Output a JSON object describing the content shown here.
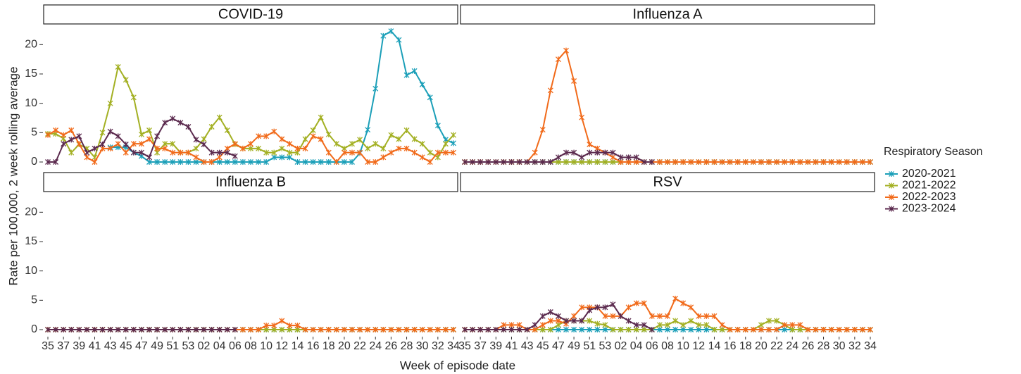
{
  "chart_data": {
    "type": "line",
    "xlabel": "Week of episode date",
    "ylabel": "Rate per 100,000, 2 week rolling average",
    "legend_title": "Respiratory Season",
    "categories": [
      "35",
      null,
      "37",
      null,
      "39",
      null,
      "41",
      null,
      "43",
      null,
      "45",
      null,
      "47",
      null,
      "49",
      null,
      "51",
      null,
      "53",
      null,
      "02",
      null,
      "04",
      null,
      "06",
      null,
      "08",
      null,
      "10",
      null,
      "12",
      null,
      "14",
      null,
      "16",
      null,
      "18",
      null,
      "20",
      null,
      "22",
      null,
      "24",
      null,
      "26",
      null,
      "28",
      null,
      "30",
      null,
      "32",
      null,
      "34"
    ],
    "ylim": [
      -1.2,
      23.4
    ],
    "yticks": [
      0,
      5,
      10,
      15,
      20
    ],
    "seasons": [
      {
        "name": "2020-2021",
        "color": "#1b9fb8"
      },
      {
        "name": "2021-2022",
        "color": "#a3b023"
      },
      {
        "name": "2022-2023",
        "color": "#f16a1a"
      },
      {
        "name": "2023-2024",
        "color": "#5b2a4e"
      }
    ],
    "facets": [
      {
        "title": "COVID-19",
        "series": [
          {
            "values": [
              null,
              null,
              null,
              null,
              null,
              null,
              null,
              null,
              2.5,
              2.5,
              2.5,
              1.6,
              1,
              0,
              0,
              0,
              0,
              0,
              0,
              0,
              0,
              0,
              0,
              0,
              0,
              0,
              0,
              0,
              0,
              0.8,
              0.8,
              0.8,
              0,
              0,
              0,
              0,
              0,
              0,
              0,
              0,
              1.5,
              5.5,
              12.5,
              21.5,
              22.3,
              20.8,
              14.8,
              15.5,
              13.2,
              11,
              6.2,
              3.8,
              3.2
            ]
          },
          {
            "values": [
              4.8,
              4.8,
              4,
              1.6,
              3,
              2.3,
              0.8,
              5,
              10,
              16.2,
              14,
              11,
              4.7,
              5.4,
              1.6,
              3.1,
              3.1,
              1.6,
              1.6,
              2.3,
              3.9,
              6,
              7.6,
              5.4,
              3,
              2.3,
              2.3,
              2.3,
              1.6,
              1.6,
              2.3,
              1.6,
              1.6,
              3.9,
              5.4,
              7.6,
              4.7,
              3.1,
              2.3,
              3.1,
              3.8,
              2.3,
              3.1,
              2.3,
              4.6,
              3.9,
              5.4,
              3.9,
              3.1,
              1.6,
              0.8,
              3.1,
              4.6
            ]
          },
          {
            "values": [
              4.6,
              5.4,
              4.6,
              5.4,
              3.1,
              0.8,
              0,
              2.3,
              2.3,
              3.1,
              1.6,
              3.1,
              3.1,
              3.9,
              2.3,
              2.3,
              1.6,
              1.6,
              1.6,
              0.8,
              0,
              0,
              0.8,
              2.3,
              3.1,
              2.3,
              3.1,
              4.4,
              4.4,
              5.2,
              3.9,
              3.1,
              2.3,
              2.3,
              4.4,
              3.9,
              1.6,
              0,
              1.6,
              1.6,
              1.6,
              0,
              0,
              0.8,
              1.6,
              2.3,
              2.3,
              1.6,
              0.8,
              0,
              1.6,
              1.6,
              1.6
            ]
          },
          {
            "values": [
              0,
              0,
              3.1,
              3.8,
              4.4,
              1.6,
              2.3,
              3,
              5.2,
              4.4,
              3,
              1.6,
              1.6,
              0.8,
              4.4,
              6.7,
              7.4,
              6.7,
              6,
              3.8,
              3,
              1.6,
              1.6,
              1.6,
              1,
              null,
              null,
              null,
              null,
              null,
              null,
              null,
              null,
              null,
              null,
              null,
              null,
              null,
              null,
              null,
              null,
              null,
              null,
              null,
              null,
              null,
              null,
              null,
              null,
              null,
              null,
              null,
              null
            ]
          }
        ]
      },
      {
        "title": "Influenza A",
        "series": [
          {
            "values": [
              null,
              null,
              null,
              null,
              null,
              null,
              null,
              null,
              0,
              0,
              0,
              0,
              0,
              0,
              0,
              0,
              0,
              0,
              0,
              0,
              0,
              0,
              0,
              0,
              0,
              0,
              0,
              0,
              0,
              0,
              0,
              0,
              0,
              0,
              0,
              0,
              0,
              0,
              0,
              0,
              0,
              0,
              0,
              0,
              0,
              0,
              0,
              0,
              0,
              0,
              0,
              0,
              0
            ]
          },
          {
            "values": [
              0,
              0,
              0,
              0,
              0,
              0,
              0,
              0,
              0,
              0,
              0,
              0,
              0,
              0,
              0,
              0,
              0,
              0,
              0,
              0,
              0,
              0,
              0,
              0,
              0,
              0,
              0,
              0,
              0,
              0,
              0,
              0,
              0,
              0,
              0,
              0,
              0,
              0,
              0,
              0,
              0,
              0,
              0,
              0,
              0,
              0,
              0,
              0,
              0,
              0,
              0,
              0,
              0
            ]
          },
          {
            "values": [
              0,
              0,
              0,
              0,
              0,
              0,
              0,
              0,
              0,
              1.6,
              5.5,
              12.2,
              17.5,
              19,
              13.8,
              7.6,
              3,
              2.3,
              1.6,
              0.8,
              0,
              0,
              0,
              0,
              0,
              0,
              0,
              0,
              0,
              0,
              0,
              0,
              0,
              0,
              0,
              0,
              0,
              0,
              0,
              0,
              0,
              0,
              0,
              0,
              0,
              0,
              0,
              0,
              0,
              0,
              0,
              0,
              0
            ]
          },
          {
            "values": [
              0,
              0,
              0,
              0,
              0,
              0,
              0,
              0,
              0,
              0,
              0,
              0,
              0.8,
              1.6,
              1.6,
              0.8,
              1.6,
              1.6,
              1.6,
              1.6,
              0.8,
              0.8,
              0.8,
              0,
              0,
              null,
              null,
              null,
              null,
              null,
              null,
              null,
              null,
              null,
              null,
              null,
              null,
              null,
              null,
              null,
              null,
              null,
              null,
              null,
              null,
              null,
              null,
              null,
              null,
              null,
              null,
              null,
              null
            ]
          }
        ]
      },
      {
        "title": "Influenza B",
        "series": [
          {
            "values": [
              null,
              null,
              null,
              null,
              null,
              null,
              null,
              null,
              0,
              0,
              0,
              0,
              0,
              0,
              0,
              0,
              0,
              0,
              0,
              0,
              0,
              0,
              0,
              0,
              0,
              0,
              0,
              0,
              0,
              0,
              0,
              0,
              0,
              0,
              0,
              0,
              0,
              0,
              0,
              0,
              0,
              0,
              0,
              0,
              0,
              0,
              0,
              0,
              0,
              0,
              0,
              0,
              0
            ]
          },
          {
            "values": [
              0,
              0,
              0,
              0,
              0,
              0,
              0,
              0,
              0,
              0,
              0,
              0,
              0,
              0,
              0,
              0,
              0,
              0,
              0,
              0,
              0,
              0,
              0,
              0,
              0,
              0,
              0,
              0,
              0,
              0,
              0,
              0,
              0,
              0,
              0,
              0,
              0,
              0,
              0,
              0,
              0,
              0,
              0,
              0,
              0,
              0,
              0,
              0,
              0,
              0,
              0,
              0,
              0
            ]
          },
          {
            "values": [
              0,
              0,
              0,
              0,
              0,
              0,
              0,
              0,
              0,
              0,
              0,
              0,
              0,
              0,
              0,
              0,
              0,
              0,
              0,
              0,
              0,
              0,
              0,
              0,
              0,
              0,
              0,
              0,
              0.7,
              0.7,
              1.5,
              0.7,
              0.7,
              0,
              0,
              0,
              0,
              0,
              0,
              0,
              0,
              0,
              0,
              0,
              0,
              0,
              0,
              0,
              0,
              0,
              0,
              0,
              0
            ]
          },
          {
            "values": [
              0,
              0,
              0,
              0,
              0,
              0,
              0,
              0,
              0,
              0,
              0,
              0,
              0,
              0,
              0,
              0,
              0,
              0,
              0,
              0,
              0,
              0,
              0,
              0,
              0,
              null,
              null,
              null,
              null,
              null,
              null,
              null,
              null,
              null,
              null,
              null,
              null,
              null,
              null,
              null,
              null,
              null,
              null,
              null,
              null,
              null,
              null,
              null,
              null,
              null,
              null,
              null,
              null
            ]
          }
        ]
      },
      {
        "title": "RSV",
        "series": [
          {
            "values": [
              null,
              null,
              null,
              null,
              null,
              null,
              null,
              null,
              0,
              0,
              0,
              0,
              0,
              0,
              0,
              0,
              0,
              0,
              0,
              0,
              0,
              0,
              0,
              0,
              0,
              0,
              0,
              0,
              0,
              0,
              0,
              0,
              0,
              0,
              0,
              0,
              0,
              0,
              0,
              0,
              0,
              0,
              0,
              0,
              0,
              0,
              0,
              0,
              0,
              0,
              0,
              0,
              0
            ]
          },
          {
            "values": [
              0,
              0,
              0,
              0,
              0,
              0,
              0,
              0,
              0,
              0,
              0,
              0,
              0.8,
              1.5,
              1.5,
              1.5,
              1.5,
              1,
              0.8,
              0,
              0,
              0,
              0,
              0,
              0,
              0.8,
              0.8,
              1.5,
              0.8,
              1.5,
              0.8,
              0.8,
              0,
              0,
              0,
              0,
              0,
              0,
              0.8,
              1.5,
              1.5,
              0.8,
              0,
              0,
              0,
              0,
              0,
              0,
              0,
              0,
              0,
              0,
              0
            ]
          },
          {
            "values": [
              0,
              0,
              0,
              0,
              0,
              0.8,
              0.8,
              0.8,
              0,
              0,
              0.8,
              1.5,
              1.5,
              1,
              2.3,
              3.8,
              3.8,
              3.8,
              2.3,
              2.3,
              2.3,
              3.8,
              4.5,
              4.5,
              2.3,
              2.3,
              2.3,
              5.3,
              4.5,
              3.8,
              2.3,
              2.3,
              2.3,
              0.8,
              0,
              0,
              0,
              0,
              0,
              0,
              0,
              0.8,
              0.8,
              0.8,
              0,
              0,
              0,
              0,
              0,
              0,
              0,
              0,
              0
            ]
          },
          {
            "values": [
              0,
              0,
              0,
              0,
              0,
              0,
              0,
              0,
              0,
              0.8,
              2.3,
              3,
              2.3,
              1.5,
              1.5,
              1.5,
              3.3,
              3.8,
              3.8,
              4.3,
              2.3,
              1.5,
              0.8,
              0.8,
              0,
              null,
              null,
              null,
              null,
              null,
              null,
              null,
              null,
              null,
              null,
              null,
              null,
              null,
              null,
              null,
              null,
              null,
              null,
              null,
              null,
              null,
              null,
              null,
              null,
              null,
              null,
              null,
              null
            ]
          }
        ]
      }
    ]
  }
}
